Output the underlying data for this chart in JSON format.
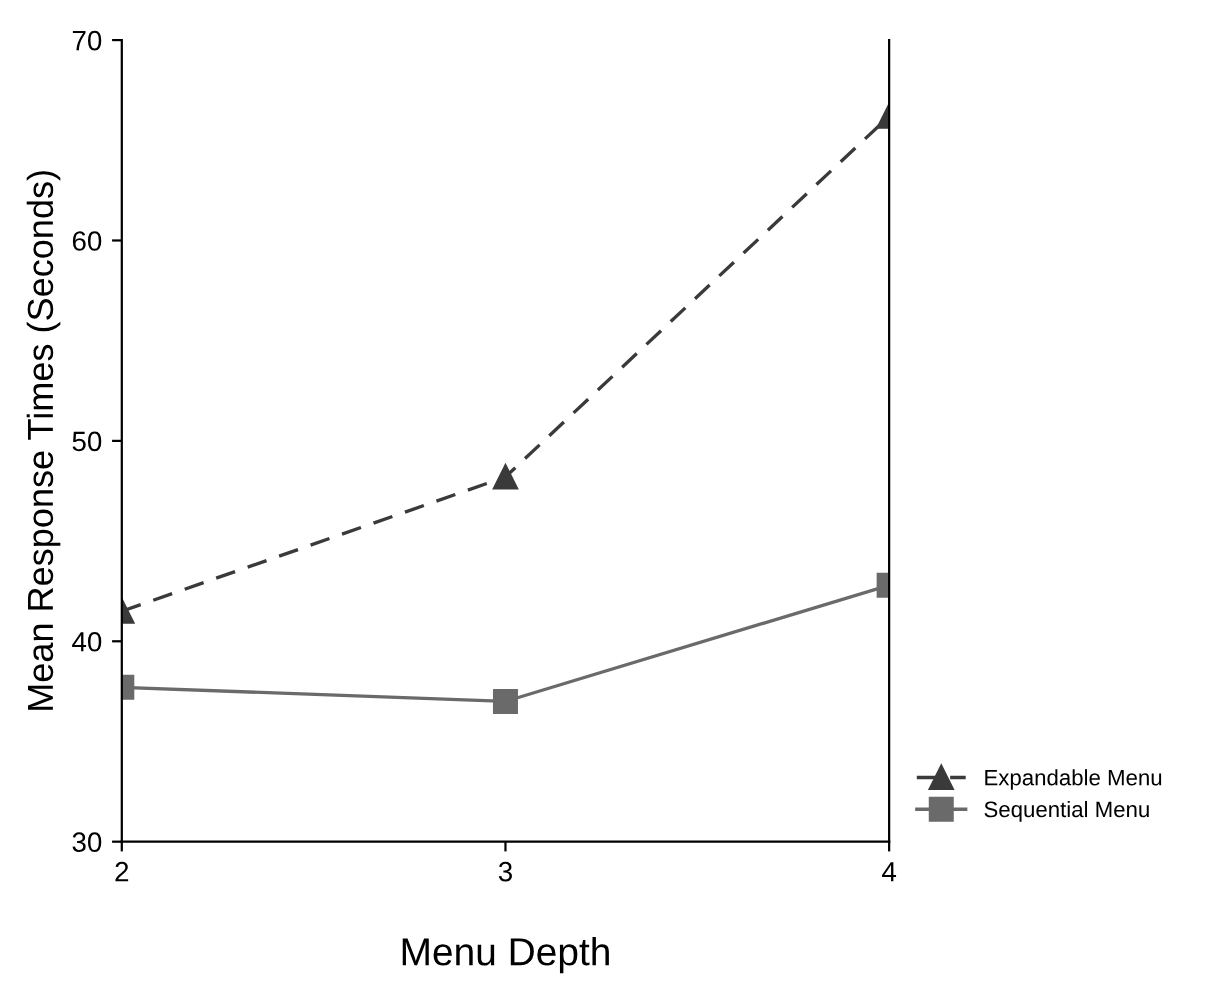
{
  "chart_data": {
    "type": "line",
    "xlabel": "Menu Depth",
    "ylabel": "Mean Response Times (Seconds)",
    "x": [
      2,
      3,
      4
    ],
    "series": [
      {
        "name": "Expandable Menu",
        "color": "#3a3a3a",
        "values": [
          41.5,
          48.2,
          66.2
        ],
        "marker": "triangle",
        "line_style": "dashed"
      },
      {
        "name": "Sequential Menu",
        "color": "#6a6a6a",
        "values": [
          37.7,
          37.0,
          42.8
        ],
        "marker": "square",
        "line_style": "solid"
      }
    ],
    "xlim": [
      2,
      4
    ],
    "xticks": [
      2,
      3,
      4
    ],
    "ylim": [
      30,
      70
    ],
    "yticks": [
      30,
      40,
      50,
      60,
      70
    ],
    "grid": false,
    "legend": "bottom right"
  }
}
